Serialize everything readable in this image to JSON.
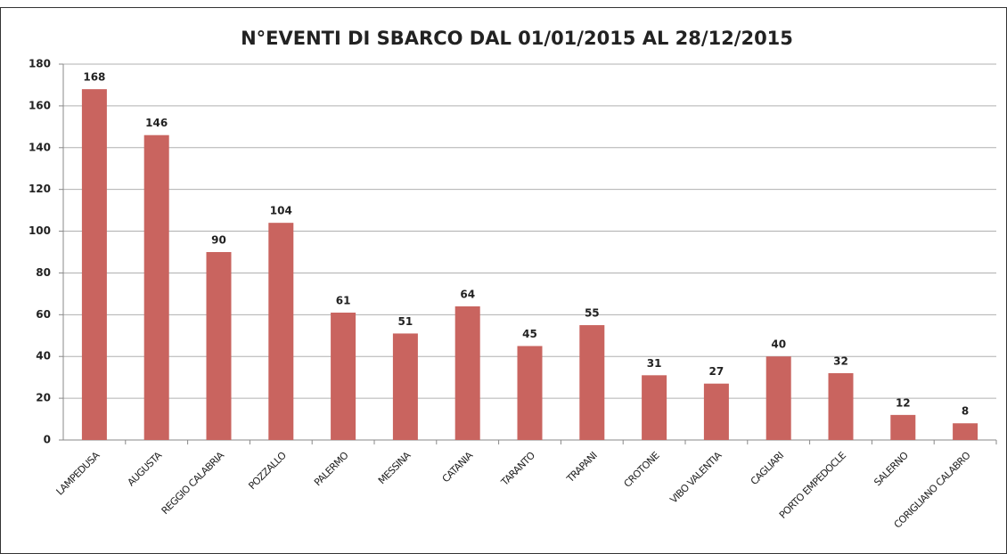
{
  "chart_data": {
    "type": "bar",
    "title": "N°EVENTI DI SBARCO DAL 01/01/2015 AL 28/12/2015",
    "categories": [
      "LAMPEDUSA",
      "AUGUSTA",
      "REGGIO CALABRIA",
      "POZZALLO",
      "PALERMO",
      "MESSINA",
      "CATANIA",
      "TARANTO",
      "TRAPANI",
      "CROTONE",
      "VIBO VALENTIA",
      "CAGLIARI",
      "PORTO EMPEDOCLE",
      "SALERNO",
      "CORIGLIANO CALABRO"
    ],
    "values": [
      168,
      146,
      90,
      104,
      61,
      51,
      64,
      45,
      55,
      31,
      27,
      40,
      32,
      12,
      8
    ],
    "color": "#c9645f",
    "ylim": [
      0,
      180
    ],
    "yticks": [
      0,
      20,
      40,
      60,
      80,
      100,
      120,
      140,
      160,
      180
    ],
    "grid": true
  }
}
